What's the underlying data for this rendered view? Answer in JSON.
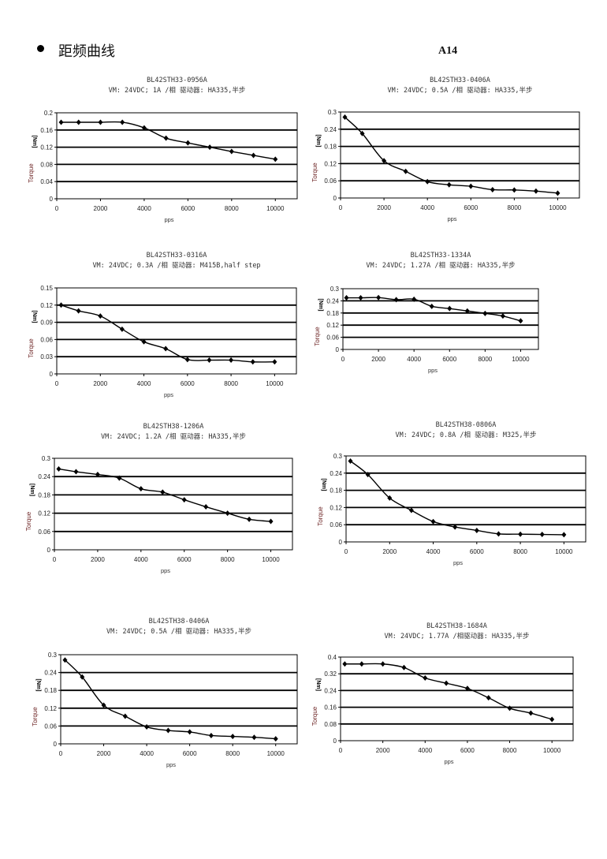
{
  "header": {
    "title": "距频曲线",
    "page_number": "A14"
  },
  "chart_data": [
    {
      "type": "line",
      "title": "BL42STH33-0956A",
      "subtitle": "VM: 24VDC;  1A /相  驱动器: HA335,半步",
      "xlabel": "pps",
      "ylabel": "Torque",
      "yunit": "[Nm]",
      "xlim": [
        0,
        11000
      ],
      "ylim": [
        0,
        0.2
      ],
      "xticks": [
        "0",
        "2000",
        "4000",
        "6000",
        "8000",
        "10000"
      ],
      "yticks": [
        "0",
        "0.04",
        "0.08",
        "0.12",
        "0.16",
        "0.2"
      ],
      "grid": true,
      "x": [
        200,
        1000,
        2000,
        3000,
        4000,
        5000,
        6000,
        7000,
        8000,
        9000,
        10000
      ],
      "values": [
        0.178,
        0.178,
        0.178,
        0.178,
        0.165,
        0.141,
        0.13,
        0.12,
        0.11,
        0.101,
        0.092
      ]
    },
    {
      "type": "line",
      "title": "BL42STH33-0406A",
      "subtitle": "VM: 24VDC;  0.5A /相  驱动器: HA335,半步",
      "xlabel": "pps",
      "ylabel": "Torque",
      "yunit": "[Nm]",
      "xlim": [
        0,
        11000
      ],
      "ylim": [
        0,
        0.3
      ],
      "xticks": [
        "0",
        "2000",
        "4000",
        "6000",
        "8000",
        "10000"
      ],
      "yticks": [
        "0",
        "0.06",
        "0.12",
        "0.18",
        "0.24",
        "0.3"
      ],
      "grid": true,
      "x": [
        200,
        1000,
        2000,
        3000,
        4000,
        5000,
        6000,
        7000,
        8000,
        9000,
        10000
      ],
      "values": [
        0.282,
        0.225,
        0.13,
        0.093,
        0.057,
        0.046,
        0.041,
        0.029,
        0.028,
        0.024,
        0.017
      ]
    },
    {
      "type": "line",
      "title": "BL42STH33-0316A",
      "subtitle": "VM: 24VDC;  0.3A /相  驱动器: M415B,half step",
      "xlabel": "pps",
      "ylabel": "Torque",
      "yunit": "[Nm]",
      "xlim": [
        0,
        11000
      ],
      "ylim": [
        0,
        0.15
      ],
      "xticks": [
        "0",
        "2000",
        "4000",
        "6000",
        "8000",
        "10000"
      ],
      "yticks": [
        "0",
        "0.03",
        "0.06",
        "0.09",
        "0.12",
        "0.15"
      ],
      "grid": true,
      "x": [
        200,
        1000,
        2000,
        3000,
        4000,
        5000,
        6000,
        7000,
        8000,
        9000,
        10000
      ],
      "values": [
        0.12,
        0.11,
        0.101,
        0.078,
        0.056,
        0.044,
        0.025,
        0.024,
        0.024,
        0.021,
        0.021
      ]
    },
    {
      "type": "line",
      "title": "BL42STH33-1334A",
      "subtitle": "VM: 24VDC;  1.27A /相  驱动器: HA335,半步",
      "xlabel": "pps",
      "ylabel": "Torque",
      "yunit": "[Nm]",
      "xlim": [
        0,
        11000
      ],
      "ylim": [
        0,
        0.3
      ],
      "xticks": [
        "0",
        "2000",
        "4000",
        "6000",
        "8000",
        "10000"
      ],
      "yticks": [
        "0",
        "0.06",
        "0.12",
        "0.18",
        "0.24",
        "0.3"
      ],
      "grid": true,
      "x": [
        200,
        1000,
        2000,
        3000,
        4000,
        5000,
        6000,
        7000,
        8000,
        9000,
        10000
      ],
      "values": [
        0.255,
        0.255,
        0.256,
        0.246,
        0.248,
        0.213,
        0.202,
        0.19,
        0.178,
        0.165,
        0.141
      ]
    },
    {
      "type": "line",
      "title": "BL42STH38-1206A",
      "subtitle": "VM: 24VDC;  1.2A /相  驱动器: HA335,半步",
      "xlabel": "pps",
      "ylabel": "Torque",
      "yunit": "[Nm]",
      "xlim": [
        0,
        11000
      ],
      "ylim": [
        0,
        0.3
      ],
      "xticks": [
        "0",
        "2000",
        "4000",
        "6000",
        "8000",
        "10000"
      ],
      "yticks": [
        "0",
        "0.06",
        "0.12",
        "0.18",
        "0.24",
        "0.3"
      ],
      "grid": true,
      "x": [
        200,
        1000,
        2000,
        3000,
        4000,
        5000,
        6000,
        7000,
        8000,
        9000,
        10000
      ],
      "values": [
        0.265,
        0.256,
        0.247,
        0.235,
        0.2,
        0.189,
        0.164,
        0.141,
        0.12,
        0.1,
        0.093
      ]
    },
    {
      "type": "line",
      "title": "BL42STH38-0806A",
      "subtitle": "VM: 24VDC;  0.8A /相 驱动器: M325,半步",
      "xlabel": "pps",
      "ylabel": "Torque",
      "yunit": "[Nm]",
      "xlim": [
        0,
        11000
      ],
      "ylim": [
        0,
        0.3
      ],
      "xticks": [
        "0",
        "2000",
        "4000",
        "6000",
        "8000",
        "10000"
      ],
      "yticks": [
        "0",
        "0.06",
        "0.12",
        "0.18",
        "0.24",
        "0.3"
      ],
      "grid": true,
      "x": [
        200,
        1000,
        2000,
        3000,
        4000,
        5000,
        6000,
        7000,
        8000,
        9000,
        10000
      ],
      "values": [
        0.282,
        0.235,
        0.153,
        0.11,
        0.071,
        0.052,
        0.04,
        0.028,
        0.027,
        0.026,
        0.025
      ]
    },
    {
      "type": "line",
      "title": "BL42STH38-0406A",
      "subtitle": "VM: 24VDC;  0.5A /相  驱动器: HA335,半步",
      "xlabel": "pps",
      "ylabel": "Torque",
      "yunit": "[Nm]",
      "xlim": [
        0,
        11000
      ],
      "ylim": [
        0,
        0.3
      ],
      "xticks": [
        "0",
        "2000",
        "4000",
        "6000",
        "8000",
        "10000"
      ],
      "yticks": [
        "0",
        "0.06",
        "0.12",
        "0.18",
        "0.24",
        "0.3"
      ],
      "grid": true,
      "x": [
        200,
        1000,
        2000,
        3000,
        4000,
        5000,
        6000,
        7000,
        8000,
        9000,
        10000
      ],
      "values": [
        0.282,
        0.225,
        0.13,
        0.093,
        0.057,
        0.045,
        0.04,
        0.028,
        0.025,
        0.022,
        0.017
      ]
    },
    {
      "type": "line",
      "title": "BL42STH38-1684A",
      "subtitle": "VM: 24VDC; 1.77A /相驱动器: HA335,半步",
      "xlabel": "pps",
      "ylabel": "Torque",
      "yunit": "[Nm]",
      "xlim": [
        0,
        11000
      ],
      "ylim": [
        0,
        0.4
      ],
      "xticks": [
        "0",
        "2000",
        "4000",
        "6000",
        "8000",
        "10000"
      ],
      "yticks": [
        "0",
        "0.08",
        "0.16",
        "0.24",
        "0.32",
        "0.4"
      ],
      "grid": true,
      "x": [
        200,
        1000,
        2000,
        3000,
        4000,
        5000,
        6000,
        7000,
        8000,
        9000,
        10000
      ],
      "values": [
        0.367,
        0.367,
        0.367,
        0.35,
        0.3,
        0.275,
        0.25,
        0.205,
        0.155,
        0.132,
        0.102
      ]
    }
  ]
}
